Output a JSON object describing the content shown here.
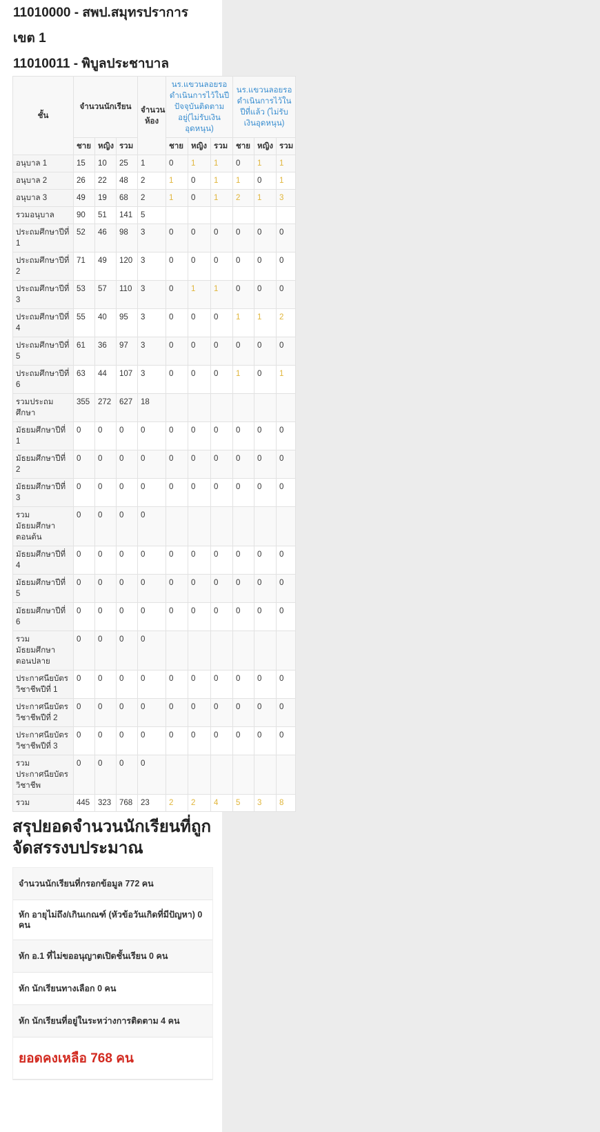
{
  "header": {
    "area": "11010000 - สพป.สมุทรปราการ",
    "area_line2": "เขต 1",
    "school": "11010011 - พิบูลประชาบาล"
  },
  "table": {
    "col_grade": "ชั้น",
    "col_students": "จำนวนนักเรียน",
    "col_rooms": "จำนวนห้อง",
    "col_pending_current": "นร.แขวนลอยรอดำเนินการไว้ในปีปัจจุบันติดตามอยู่(ไม่รับเงินอุดหนุน)",
    "col_pending_last": "นร.แขวนลอยรอดำเนินการไว้ในปีที่แล้ว (ไม่รับเงินอุดหนุน)",
    "sub": [
      "ชาย",
      "หญิง",
      "รวม"
    ],
    "rows": [
      [
        "อนุบาล 1",
        "15",
        "10",
        "25",
        "1",
        "0",
        "1",
        "1",
        "0",
        "1",
        "1"
      ],
      [
        "อนุบาล 2",
        "26",
        "22",
        "48",
        "2",
        "1",
        "0",
        "1",
        "1",
        "0",
        "1"
      ],
      [
        "อนุบาล 3",
        "49",
        "19",
        "68",
        "2",
        "1",
        "0",
        "1",
        "2",
        "1",
        "3"
      ],
      [
        "รวมอนุบาล",
        "90",
        "51",
        "141",
        "5",
        "",
        "",
        "",
        "",
        "",
        ""
      ],
      [
        "ประถมศึกษาปีที่ 1",
        "52",
        "46",
        "98",
        "3",
        "0",
        "0",
        "0",
        "0",
        "0",
        "0"
      ],
      [
        "ประถมศึกษาปีที่ 2",
        "71",
        "49",
        "120",
        "3",
        "0",
        "0",
        "0",
        "0",
        "0",
        "0"
      ],
      [
        "ประถมศึกษาปีที่ 3",
        "53",
        "57",
        "110",
        "3",
        "0",
        "1",
        "1",
        "0",
        "0",
        "0"
      ],
      [
        "ประถมศึกษาปีที่ 4",
        "55",
        "40",
        "95",
        "3",
        "0",
        "0",
        "0",
        "1",
        "1",
        "2"
      ],
      [
        "ประถมศึกษาปีที่ 5",
        "61",
        "36",
        "97",
        "3",
        "0",
        "0",
        "0",
        "0",
        "0",
        "0"
      ],
      [
        "ประถมศึกษาปีที่ 6",
        "63",
        "44",
        "107",
        "3",
        "0",
        "0",
        "0",
        "1",
        "0",
        "1"
      ],
      [
        "รวมประถมศึกษา",
        "355",
        "272",
        "627",
        "18",
        "",
        "",
        "",
        "",
        "",
        ""
      ],
      [
        "มัธยมศึกษาปีที่ 1",
        "0",
        "0",
        "0",
        "0",
        "0",
        "0",
        "0",
        "0",
        "0",
        "0"
      ],
      [
        "มัธยมศึกษาปีที่ 2",
        "0",
        "0",
        "0",
        "0",
        "0",
        "0",
        "0",
        "0",
        "0",
        "0"
      ],
      [
        "มัธยมศึกษาปีที่ 3",
        "0",
        "0",
        "0",
        "0",
        "0",
        "0",
        "0",
        "0",
        "0",
        "0"
      ],
      [
        "รวม มัธยมศึกษาตอนต้น",
        "0",
        "0",
        "0",
        "0",
        "",
        "",
        "",
        "",
        "",
        ""
      ],
      [
        "มัธยมศึกษาปีที่ 4",
        "0",
        "0",
        "0",
        "0",
        "0",
        "0",
        "0",
        "0",
        "0",
        "0"
      ],
      [
        "มัธยมศึกษาปีที่ 5",
        "0",
        "0",
        "0",
        "0",
        "0",
        "0",
        "0",
        "0",
        "0",
        "0"
      ],
      [
        "มัธยมศึกษาปีที่ 6",
        "0",
        "0",
        "0",
        "0",
        "0",
        "0",
        "0",
        "0",
        "0",
        "0"
      ],
      [
        "รวม มัธยมศึกษาตอนปลาย",
        "0",
        "0",
        "0",
        "0",
        "",
        "",
        "",
        "",
        "",
        ""
      ],
      [
        "ประกาศนียบัตรวิชาชีพปีที่ 1",
        "0",
        "0",
        "0",
        "0",
        "0",
        "0",
        "0",
        "0",
        "0",
        "0"
      ],
      [
        "ประกาศนียบัตรวิชาชีพปีที่ 2",
        "0",
        "0",
        "0",
        "0",
        "0",
        "0",
        "0",
        "0",
        "0",
        "0"
      ],
      [
        "ประกาศนียบัตรวิชาชีพปีที่ 3",
        "0",
        "0",
        "0",
        "0",
        "0",
        "0",
        "0",
        "0",
        "0",
        "0"
      ],
      [
        "รวม ประกาศนียบัตรวิชาชีพ",
        "0",
        "0",
        "0",
        "0",
        "",
        "",
        "",
        "",
        "",
        ""
      ],
      [
        "รวม",
        "445",
        "323",
        "768",
        "23",
        "2",
        "2",
        "4",
        "5",
        "3",
        "8"
      ]
    ]
  },
  "summary": {
    "title": "สรุปยอดจำนวนนักเรียนที่ถูกจัดสรรงบประมาณ",
    "items": [
      "จำนวนนักเรียนที่กรอกข้อมูล 772 คน",
      "หัก อายุไม่ถึง/เกินเกณฑ์ (หัวข้อวันเกิดที่มีปัญหา) 0 คน",
      "หัก อ.1 ที่ไม่ขออนุญาตเปิดชั้นเรียน 0 คน",
      "หัก นักเรียนทางเลือก 0 คน",
      "หัก นักเรียนที่อยู่ในระหว่างการติดตาม 4 คน"
    ],
    "final": "ยอดคงเหลือ 768 คน"
  },
  "colors": {
    "link": "#3a8ed0",
    "highlight": "#e0b53a",
    "final": "#d22a20"
  }
}
